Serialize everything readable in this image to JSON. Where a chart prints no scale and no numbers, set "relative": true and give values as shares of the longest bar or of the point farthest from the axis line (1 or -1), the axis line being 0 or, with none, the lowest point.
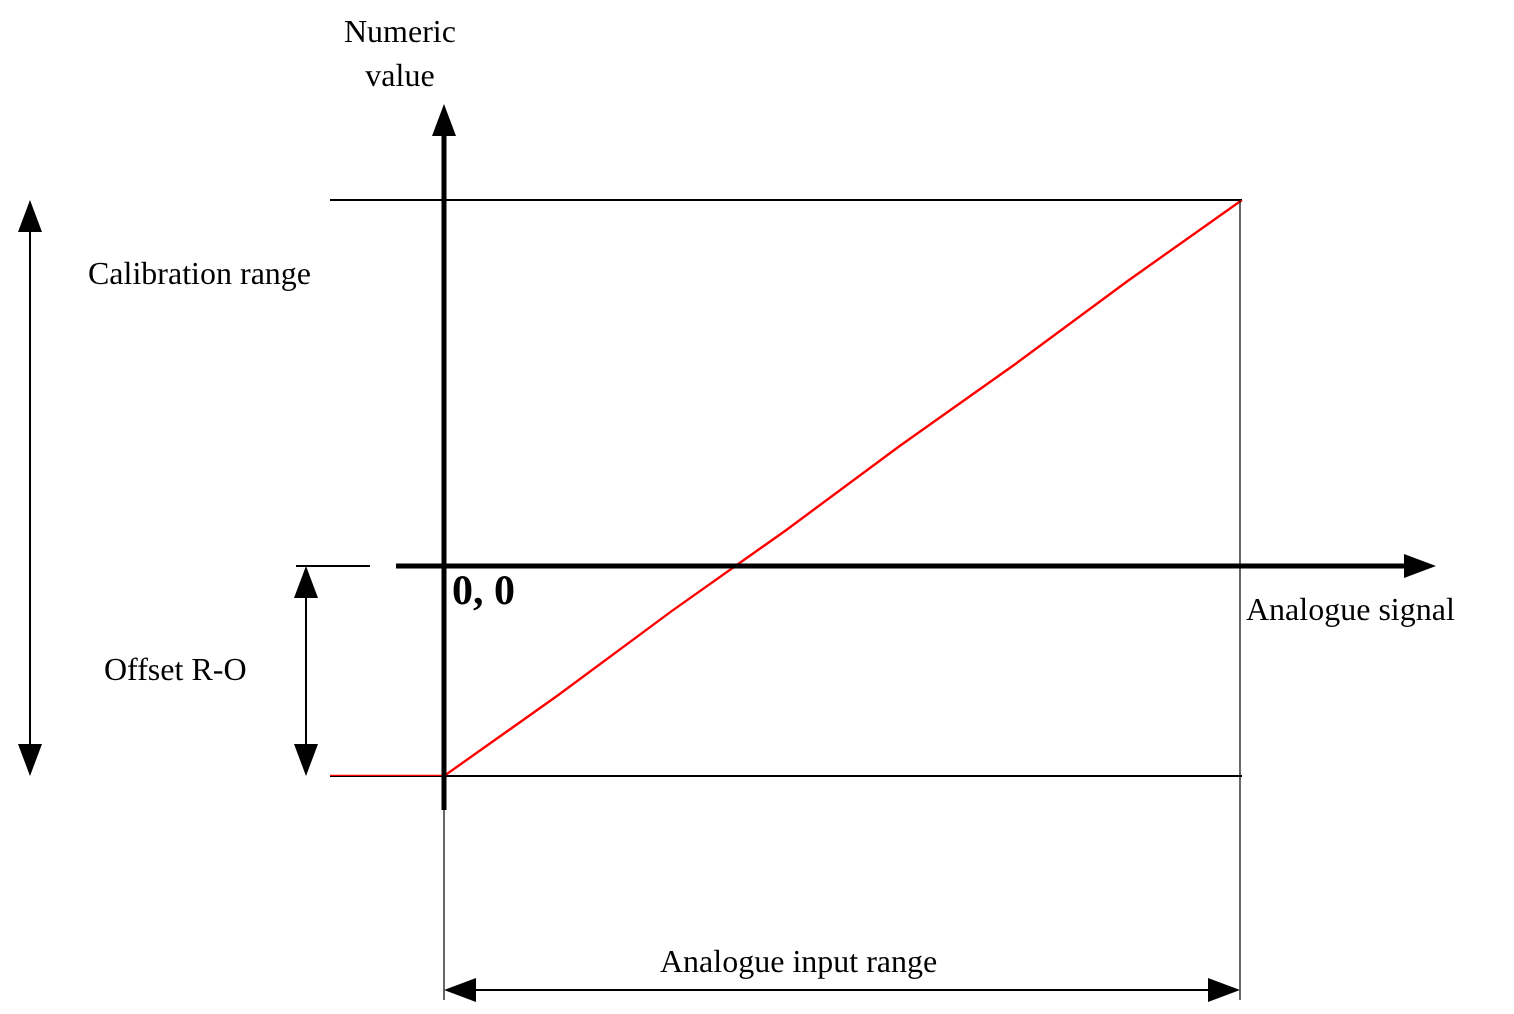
{
  "chart_data": {
    "type": "line",
    "relative": true,
    "xlabel": "Analogue signal",
    "ylabel": "Numeric value",
    "categories": [
      null,
      null,
      null,
      null,
      null,
      null,
      null,
      null,
      null
    ],
    "values": [
      -0.57,
      -0.57,
      -0.35,
      -0.12,
      0.1,
      0.33,
      0.55,
      0.78,
      1
    ],
    "color": "#ff0000",
    "marker": "none",
    "grid": false,
    "legend": false,
    "ref_lines": [
      {
        "axis": "y",
        "value": 1,
        "color": "#000000"
      },
      {
        "axis": "y",
        "value": -0.57,
        "color": "#000000"
      }
    ],
    "annotations": [
      "0, 0",
      "Calibration range",
      "Offset R-O",
      "Analogue input range"
    ]
  }
}
